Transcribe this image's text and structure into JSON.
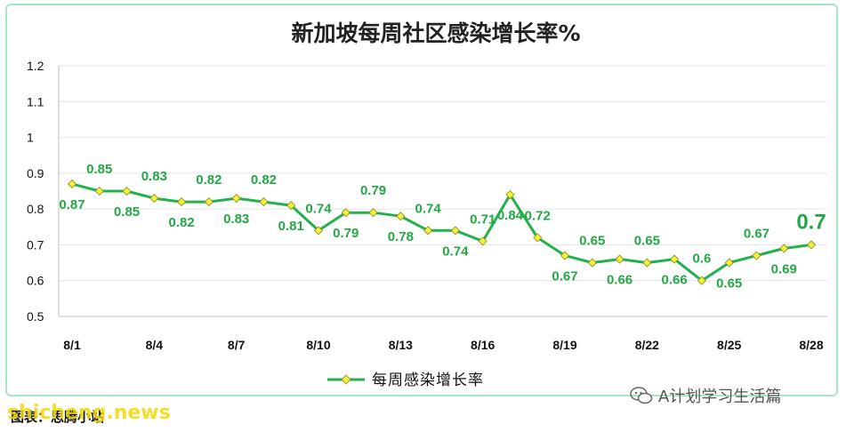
{
  "chart_data": {
    "type": "line",
    "title": "新加坡每周社区感染增长率%",
    "x": [
      "8/1",
      "8/2",
      "8/3",
      "8/4",
      "8/5",
      "8/6",
      "8/7",
      "8/8",
      "8/9",
      "8/10",
      "8/11",
      "8/12",
      "8/13",
      "8/14",
      "8/15",
      "8/16",
      "8/17",
      "8/18",
      "8/19",
      "8/20",
      "8/21",
      "8/22",
      "8/23",
      "8/24",
      "8/25",
      "8/26",
      "8/27",
      "8/28"
    ],
    "x_tick_labels": [
      "8/1",
      "8/4",
      "8/7",
      "8/10",
      "8/13",
      "8/16",
      "8/19",
      "8/22",
      "8/25",
      "8/28"
    ],
    "series": [
      {
        "name": "每周感染增长率",
        "color": "#22b14c",
        "marker_color": "#f2f23a",
        "values": [
          0.87,
          0.85,
          0.85,
          0.83,
          0.82,
          0.82,
          0.83,
          0.82,
          0.81,
          0.74,
          0.79,
          0.79,
          0.78,
          0.74,
          0.74,
          0.71,
          0.84,
          0.72,
          0.67,
          0.65,
          0.66,
          0.65,
          0.66,
          0.6,
          0.65,
          0.67,
          0.69,
          0.7
        ],
        "data_labels": [
          "0.87",
          "0.85",
          "0.85",
          "0.83",
          "0.82",
          "0.82",
          "0.83",
          "0.82",
          "0.81",
          "0.74",
          "0.79",
          "0.79",
          "0.78",
          "0.74",
          "0.74",
          "0.71",
          "0.84",
          "0.72",
          "0.67",
          "0.65",
          "0.66",
          "0.65",
          "0.66",
          "0.6",
          "0.65",
          "0.67",
          "0.69",
          "0.7"
        ]
      }
    ],
    "y_tick_labels": [
      "0.5",
      "0.6",
      "0.7",
      "0.8",
      "0.9",
      "1",
      "1.1",
      "1.2"
    ],
    "ylim": [
      0.5,
      1.2
    ],
    "grid": true,
    "legend_position": "bottom"
  },
  "footer_note": "图表：思腾小站",
  "watermark_site": "shicheng.news",
  "watermark_wechat": "A计划学习生活篇"
}
